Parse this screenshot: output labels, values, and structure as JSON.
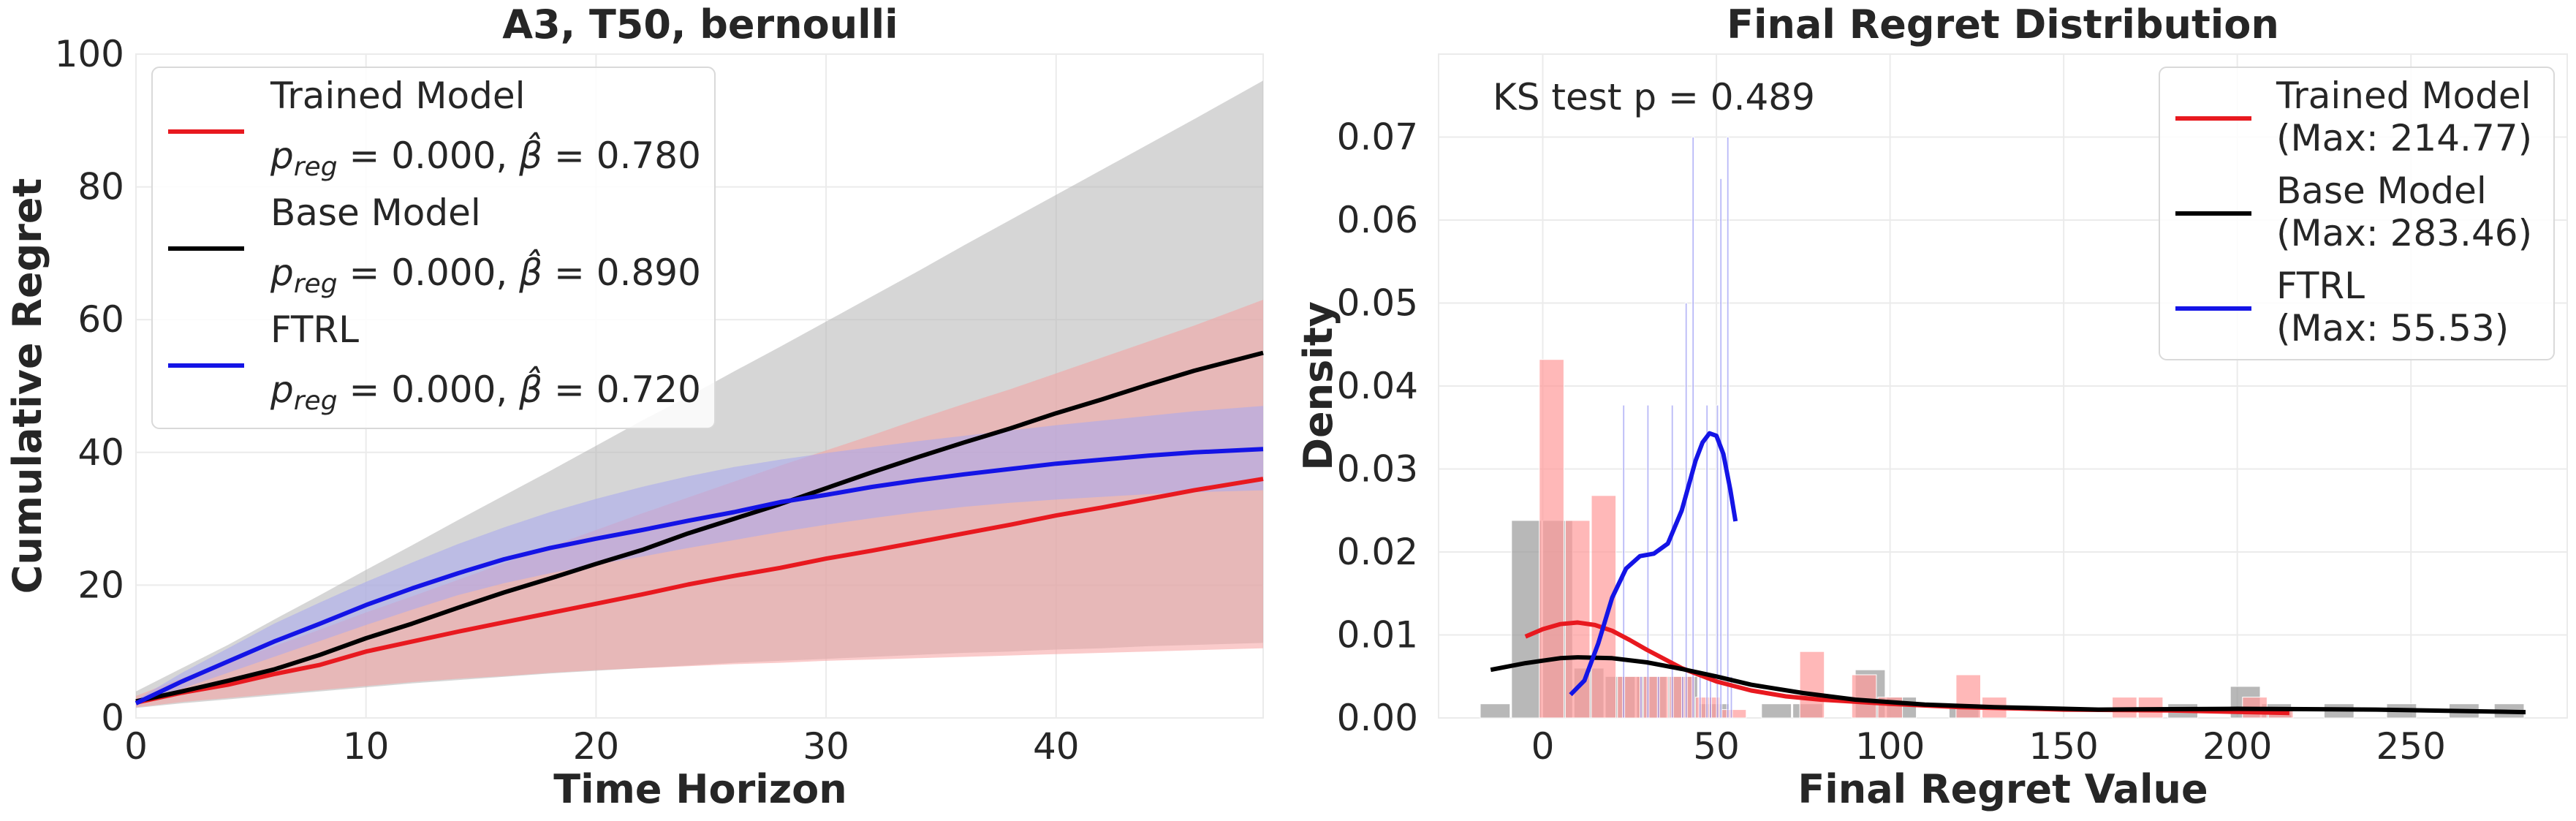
{
  "chart_data": [
    {
      "type": "line",
      "title": "A3, T50, bernoulli",
      "xlabel": "Time Horizon",
      "ylabel": "Cumulative Regret",
      "xlim": [
        0,
        49
      ],
      "ylim": [
        0,
        100
      ],
      "xticks": [
        0,
        10,
        20,
        30,
        40
      ],
      "yticks": [
        0,
        20,
        40,
        60,
        80,
        100
      ],
      "grid": true,
      "legend_position": "top-left",
      "x": [
        0,
        2,
        4,
        6,
        8,
        10,
        12,
        14,
        16,
        18,
        20,
        22,
        24,
        26,
        28,
        30,
        32,
        34,
        36,
        38,
        40,
        42,
        44,
        46,
        49
      ],
      "series": [
        {
          "name": "Trained Model",
          "stat_label": "p_reg = 0.000, β̂ = 0.780",
          "color": "#e8191f",
          "band_color": "#f5a0a0",
          "mean": [
            2.3,
            3.8,
            5.0,
            6.6,
            8.0,
            10.0,
            11.5,
            13.0,
            14.4,
            15.8,
            17.2,
            18.6,
            20.1,
            21.4,
            22.6,
            24.0,
            25.2,
            26.5,
            27.8,
            29.1,
            30.5,
            31.7,
            33.0,
            34.3,
            36.0
          ],
          "lower": [
            1.6,
            2.4,
            3.0,
            3.6,
            4.2,
            4.8,
            5.4,
            5.9,
            6.3,
            6.8,
            7.2,
            7.5,
            7.8,
            8.1,
            8.3,
            8.6,
            8.8,
            9.0,
            9.2,
            9.4,
            9.6,
            9.8,
            10.0,
            10.2,
            10.5
          ],
          "upper": [
            3.3,
            6.0,
            8.4,
            10.8,
            13.3,
            15.9,
            18.3,
            20.8,
            23.3,
            25.8,
            28.3,
            30.8,
            33.2,
            35.6,
            38.0,
            40.3,
            42.6,
            45.0,
            47.3,
            49.5,
            51.9,
            54.3,
            56.7,
            59.1,
            63.0
          ]
        },
        {
          "name": "Base Model",
          "stat_label": "p_reg = 0.000, β̂ = 0.890",
          "color": "#000000",
          "band_color": "#b5b5b5",
          "mean": [
            2.5,
            4.0,
            5.6,
            7.3,
            9.5,
            12.0,
            14.2,
            16.6,
            18.9,
            21.0,
            23.2,
            25.3,
            27.8,
            30.0,
            32.2,
            34.6,
            37.0,
            39.3,
            41.5,
            43.6,
            45.9,
            48.0,
            50.2,
            52.3,
            55.0
          ],
          "lower": [
            1.5,
            2.2,
            2.8,
            3.4,
            4.0,
            4.6,
            5.2,
            5.7,
            6.2,
            6.7,
            7.1,
            7.5,
            7.9,
            8.3,
            8.6,
            8.9,
            9.2,
            9.5,
            9.8,
            10.0,
            10.3,
            10.5,
            10.8,
            11.0,
            11.3
          ],
          "upper": [
            4.0,
            7.5,
            11.0,
            14.8,
            18.5,
            22.3,
            26.0,
            29.8,
            33.5,
            37.2,
            41.0,
            44.8,
            48.4,
            52.2,
            55.9,
            59.7,
            63.5,
            67.3,
            71.2,
            75.0,
            78.8,
            82.6,
            86.4,
            90.2,
            96.0
          ]
        },
        {
          "name": "FTRL",
          "stat_label": "p_reg = 0.000, β̂ = 0.720",
          "color": "#1414e6",
          "band_color": "#a8a8f0",
          "mean": [
            2.2,
            5.5,
            8.5,
            11.5,
            14.2,
            17.0,
            19.5,
            21.8,
            23.9,
            25.6,
            27.0,
            28.3,
            29.7,
            31.0,
            32.5,
            33.6,
            34.8,
            35.8,
            36.7,
            37.5,
            38.3,
            38.9,
            39.5,
            40.0,
            40.5
          ],
          "lower": [
            1.9,
            4.4,
            6.8,
            9.2,
            11.6,
            14.0,
            16.3,
            18.5,
            20.3,
            21.8,
            23.1,
            24.3,
            25.6,
            26.8,
            28.0,
            29.1,
            30.1,
            31.0,
            31.8,
            32.4,
            32.9,
            33.3,
            33.7,
            34.0,
            34.3
          ],
          "upper": [
            2.7,
            6.8,
            10.5,
            14.2,
            17.4,
            20.5,
            23.4,
            26.2,
            28.7,
            31.0,
            33.0,
            34.8,
            36.4,
            37.8,
            38.9,
            39.9,
            40.8,
            41.7,
            42.5,
            43.3,
            44.1,
            44.8,
            45.5,
            46.2,
            47.0
          ]
        }
      ]
    },
    {
      "type": "histogram",
      "title": "Final Regret Distribution",
      "xlabel": "Final Regret Value",
      "ylabel": "Density",
      "xlim": [
        -30,
        295
      ],
      "ylim": [
        0,
        0.08
      ],
      "xticks": [
        0,
        50,
        100,
        150,
        200,
        250
      ],
      "yticks": [
        0.0,
        0.01,
        0.02,
        0.03,
        0.04,
        0.05,
        0.06,
        0.07
      ],
      "yticklabels": [
        "0.00",
        "0.01",
        "0.02",
        "0.03",
        "0.04",
        "0.05",
        "0.06",
        "0.07"
      ],
      "grid": true,
      "legend_position": "top-right",
      "annotation": "KS test p = 0.489",
      "series": [
        {
          "name": "Trained Model",
          "legend_detail": "(Max: 214.77)",
          "color": "#e8191f",
          "bar_color": "#ff9a9a",
          "bars": [
            [
              -1,
              6.5,
              0.0432
            ],
            [
              6.5,
              14,
              0.0238
            ],
            [
              14,
              21.5,
              0.0268
            ],
            [
              21.5,
              29,
              0.005
            ],
            [
              29,
              36.5,
              0.005
            ],
            [
              36.5,
              44,
              0.005
            ],
            [
              44,
              51.5,
              0.0025
            ],
            [
              51.5,
              59,
              0.001
            ],
            [
              74,
              81.5,
              0.008
            ],
            [
              89,
              96.5,
              0.0052
            ],
            [
              96.5,
              104,
              0.0025
            ],
            [
              119,
              126.5,
              0.0052
            ],
            [
              126.5,
              134,
              0.0025
            ],
            [
              164,
              171.5,
              0.0025
            ],
            [
              171.5,
              179,
              0.0025
            ],
            [
              201.5,
              209,
              0.0025
            ],
            [
              209,
              216.5,
              0.001
            ]
          ],
          "kde_x": [
            -5,
            0,
            5,
            10,
            15,
            20,
            25,
            30,
            40,
            50,
            60,
            70,
            80,
            100,
            120,
            150,
            180,
            215
          ],
          "kde_y": [
            0.0098,
            0.0107,
            0.0113,
            0.0115,
            0.0112,
            0.0105,
            0.0094,
            0.0082,
            0.006,
            0.0044,
            0.0033,
            0.0026,
            0.0022,
            0.0017,
            0.0013,
            0.001,
            0.0009,
            0.0006
          ]
        },
        {
          "name": "Base Model",
          "legend_detail": "(Max: 283.46)",
          "color": "#000000",
          "bar_color": "#9a9a9a",
          "bars": [
            [
              -18,
              -9,
              0.0017
            ],
            [
              -9,
              0,
              0.0238
            ],
            [
              0,
              9,
              0.0238
            ],
            [
              9,
              18,
              0.006
            ],
            [
              18,
              27,
              0.005
            ],
            [
              27,
              36,
              0.005
            ],
            [
              36,
              45,
              0.005
            ],
            [
              45,
              54,
              0.0017
            ],
            [
              63,
              72,
              0.0017
            ],
            [
              72,
              81,
              0.0017
            ],
            [
              90,
              99,
              0.0058
            ],
            [
              99,
              108,
              0.0025
            ],
            [
              117,
              126,
              0.0017
            ],
            [
              180,
              189,
              0.0017
            ],
            [
              198,
              207,
              0.0038
            ],
            [
              207,
              216,
              0.0017
            ],
            [
              225,
              234,
              0.0017
            ],
            [
              243,
              252,
              0.0017
            ],
            [
              261,
              270,
              0.0017
            ],
            [
              274,
              283,
              0.0017
            ]
          ],
          "kde_x": [
            -15,
            -5,
            0,
            5,
            10,
            20,
            30,
            40,
            50,
            60,
            75,
            90,
            110,
            130,
            160,
            200,
            240,
            283
          ],
          "kde_y": [
            0.0058,
            0.0066,
            0.0069,
            0.0072,
            0.0073,
            0.0072,
            0.0067,
            0.0059,
            0.005,
            0.004,
            0.003,
            0.0022,
            0.0016,
            0.0013,
            0.001,
            0.0011,
            0.001,
            0.0007
          ]
        },
        {
          "name": "FTRL",
          "legend_detail": "(Max: 55.53)",
          "color": "#1414e6",
          "bar_color": "#8080f0",
          "bars": [
            [
              23,
              24,
              0.0377
            ],
            [
              28,
              29,
              0.005
            ],
            [
              30,
              31,
              0.0377
            ],
            [
              33,
              34,
              0.005
            ],
            [
              37,
              38,
              0.0377
            ],
            [
              40,
              41,
              0.005
            ],
            [
              41,
              42,
              0.05
            ],
            [
              43,
              44,
              0.07
            ],
            [
              45,
              46,
              0.005
            ],
            [
              47,
              48,
              0.0377
            ],
            [
              48,
              49,
              0.005
            ],
            [
              50,
              51,
              0.0377
            ],
            [
              51,
              52,
              0.065
            ],
            [
              53,
              54,
              0.07
            ],
            [
              54,
              55,
              0.005
            ]
          ],
          "kde_x": [
            8,
            12,
            16,
            20,
            24,
            28,
            32,
            36,
            40,
            42,
            44,
            46,
            48,
            50,
            52,
            54,
            55.5
          ],
          "kde_y": [
            0.0028,
            0.0045,
            0.009,
            0.0145,
            0.018,
            0.0195,
            0.0198,
            0.021,
            0.025,
            0.028,
            0.031,
            0.0332,
            0.0343,
            0.034,
            0.0318,
            0.0275,
            0.0237
          ]
        }
      ]
    }
  ]
}
